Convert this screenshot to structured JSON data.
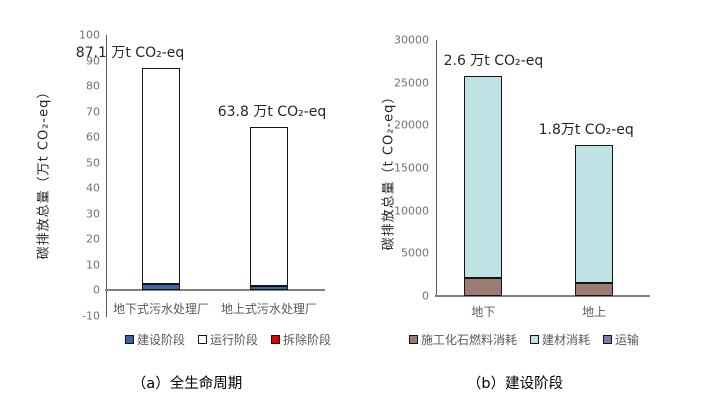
{
  "chart_data": [
    {
      "type": "bar",
      "stacked": true,
      "caption": "（a）全生命周期",
      "ylabel": "碳排放总量（万t CO₂-eq）",
      "ylim": [
        -10,
        100
      ],
      "ytick_step": 10,
      "yticks": [
        "100",
        "90",
        "80",
        "70",
        "60",
        "50",
        "40",
        "30",
        "20",
        "10",
        "0",
        "-10"
      ],
      "categories": [
        "地下式污水处理厂",
        "地上式污水处理厂"
      ],
      "series": [
        {
          "name": "建设阶段",
          "color": "#3D63AD",
          "values": [
            2.6,
            1.8
          ]
        },
        {
          "name": "运行阶段",
          "color": "#FFFFFF",
          "values": [
            84.5,
            62.0
          ]
        },
        {
          "name": "拆除阶段",
          "color": "#E00000",
          "values": [
            0,
            0
          ]
        }
      ],
      "totals": [
        87.1,
        63.8
      ],
      "total_labels": [
        "87.1 万t CO₂-eq",
        "63.8 万t CO₂-eq"
      ],
      "legend_position": "bottom",
      "grid": false
    },
    {
      "type": "bar",
      "stacked": true,
      "caption": "（b）建设阶段",
      "ylabel": "碳排放总量（t CO₂-eq）",
      "ylim": [
        0,
        30000
      ],
      "ytick_step": 5000,
      "yticks": [
        "30000",
        "25000",
        "20000",
        "15000",
        "10000",
        "5000",
        "0"
      ],
      "categories": [
        "地下",
        "地上"
      ],
      "series": [
        {
          "name": "施工化石燃料消耗",
          "color": "#9A7C74",
          "values": [
            2100,
            1500
          ]
        },
        {
          "name": "建材消耗",
          "color": "#BFE3E5",
          "values": [
            23700,
            16200
          ]
        },
        {
          "name": "运输",
          "color": "#7381A6",
          "values": [
            0,
            0
          ]
        }
      ],
      "totals": [
        25800,
        17700
      ],
      "total_labels": [
        "2.6 万t CO₂-eq",
        "1.8万t CO₂-eq"
      ],
      "legend_position": "bottom",
      "grid": false
    }
  ]
}
